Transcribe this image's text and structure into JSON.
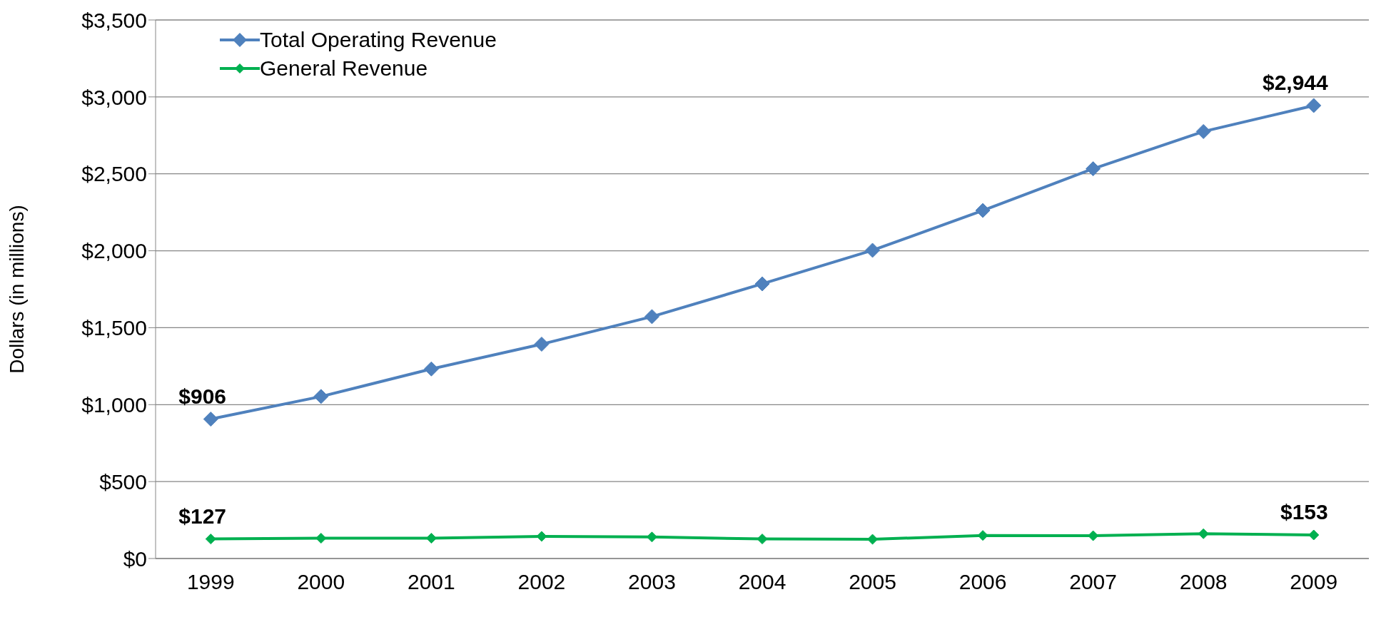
{
  "chart_data": {
    "type": "line",
    "ylabel": "Dollars (in millions)",
    "categories": [
      "1999",
      "2000",
      "2001",
      "2002",
      "2003",
      "2004",
      "2005",
      "2006",
      "2007",
      "2008",
      "2009"
    ],
    "series": [
      {
        "name": "Total Operating Revenue",
        "color": "#4f81bd",
        "marker": "diamond",
        "values": [
          906,
          1053,
          1232,
          1393,
          1572,
          1785,
          2003,
          2262,
          2533,
          2775,
          2944
        ],
        "value_labels": [
          "$906",
          null,
          null,
          null,
          null,
          null,
          null,
          null,
          null,
          null,
          "$2,944"
        ]
      },
      {
        "name": "General Revenue",
        "color": "#00b050",
        "marker": "diamond",
        "values": [
          127,
          132,
          132,
          144,
          140,
          127,
          125,
          150,
          148,
          161,
          153
        ],
        "value_labels": [
          "$127",
          null,
          null,
          null,
          null,
          null,
          null,
          null,
          null,
          null,
          "$153"
        ]
      }
    ],
    "ylim": [
      0,
      3500
    ],
    "yticks": [
      {
        "value": 0,
        "label": "$0"
      },
      {
        "value": 500,
        "label": "$500"
      },
      {
        "value": 1000,
        "label": "$1,000"
      },
      {
        "value": 1500,
        "label": "$1,500"
      },
      {
        "value": 2000,
        "label": "$2,000"
      },
      {
        "value": 2500,
        "label": "$2,500"
      },
      {
        "value": 3000,
        "label": "$3,000"
      },
      {
        "value": 3500,
        "label": "$3,500"
      }
    ],
    "grid": "y",
    "legend": "top left",
    "line_style": "solid"
  }
}
